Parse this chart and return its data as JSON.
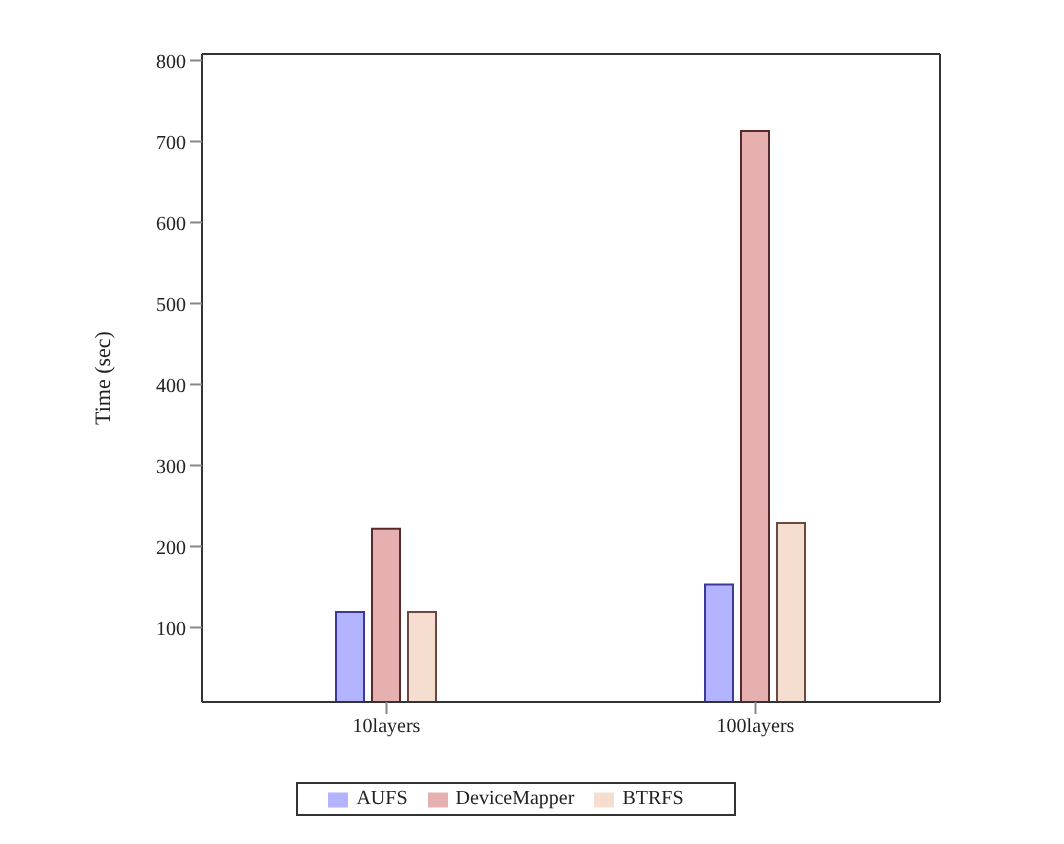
{
  "chart_data": {
    "type": "bar",
    "ylabel": "Time (sec)",
    "categories": [
      "10layers",
      "100layers"
    ],
    "series": [
      {
        "name": "AUFS",
        "color": "#b3b3ff",
        "values": [
          119,
          153
        ]
      },
      {
        "name": "DeviceMapper",
        "color": "#e6b0b0",
        "values": [
          222,
          713
        ]
      },
      {
        "name": "BTRFS",
        "color": "#f5ddd0",
        "values": [
          119,
          229
        ]
      }
    ],
    "ylim": [
      8,
      808
    ],
    "yticks": [
      100,
      200,
      300,
      400,
      500,
      600,
      700,
      800
    ],
    "legend": "bottom"
  }
}
